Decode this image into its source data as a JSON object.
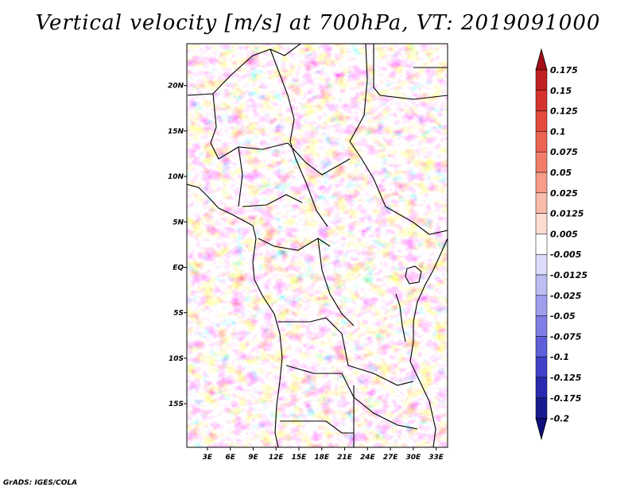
{
  "title": "Vertical velocity [m/s] at 700hPa, VT: 2019091000",
  "credit": "GrADS: IGES/COLA",
  "chart_data": {
    "type": "heatmap",
    "title": "Vertical velocity [m/s] at 700hPa, VT: 2019091000",
    "variable": "Vertical velocity",
    "units": "m/s",
    "level": "700hPa",
    "valid_time": "2019091000",
    "x_ticks": [
      "3E",
      "6E",
      "9E",
      "12E",
      "15E",
      "18E",
      "21E",
      "24E",
      "27E",
      "30E",
      "33E"
    ],
    "x_tick_values": [
      3,
      6,
      9,
      12,
      15,
      18,
      21,
      24,
      27,
      30,
      33
    ],
    "y_ticks": [
      "20N",
      "15N",
      "10N",
      "5N",
      "EQ",
      "5S",
      "10S",
      "15S"
    ],
    "y_tick_values": [
      20,
      15,
      10,
      5,
      0,
      -5,
      -10,
      -15
    ],
    "xlim": [
      0.3,
      34.5
    ],
    "ylim": [
      -19.8,
      24.6
    ],
    "colorbar": {
      "labels": [
        "0.175",
        "0.15",
        "0.125",
        "0.1",
        "0.075",
        "0.05",
        "0.025",
        "0.0125",
        "0.005",
        "-0.005",
        "-0.0125",
        "-0.025",
        "-0.05",
        "-0.075",
        "-0.1",
        "-0.125",
        "-0.175",
        "-0.2"
      ],
      "colors": [
        "#a50f15",
        "#c11f22",
        "#d6332e",
        "#e34a3e",
        "#ec6351",
        "#f27e6a",
        "#f69c88",
        "#f9bcab",
        "#fcdcd1",
        "#ffffff",
        "#dcdcfa",
        "#bdbdf4",
        "#9e9eee",
        "#7e7ee6",
        "#5e5ed8",
        "#4040c8",
        "#2a2ab0",
        "#1a1a90",
        "#10107a"
      ]
    },
    "legend_position": "right"
  }
}
